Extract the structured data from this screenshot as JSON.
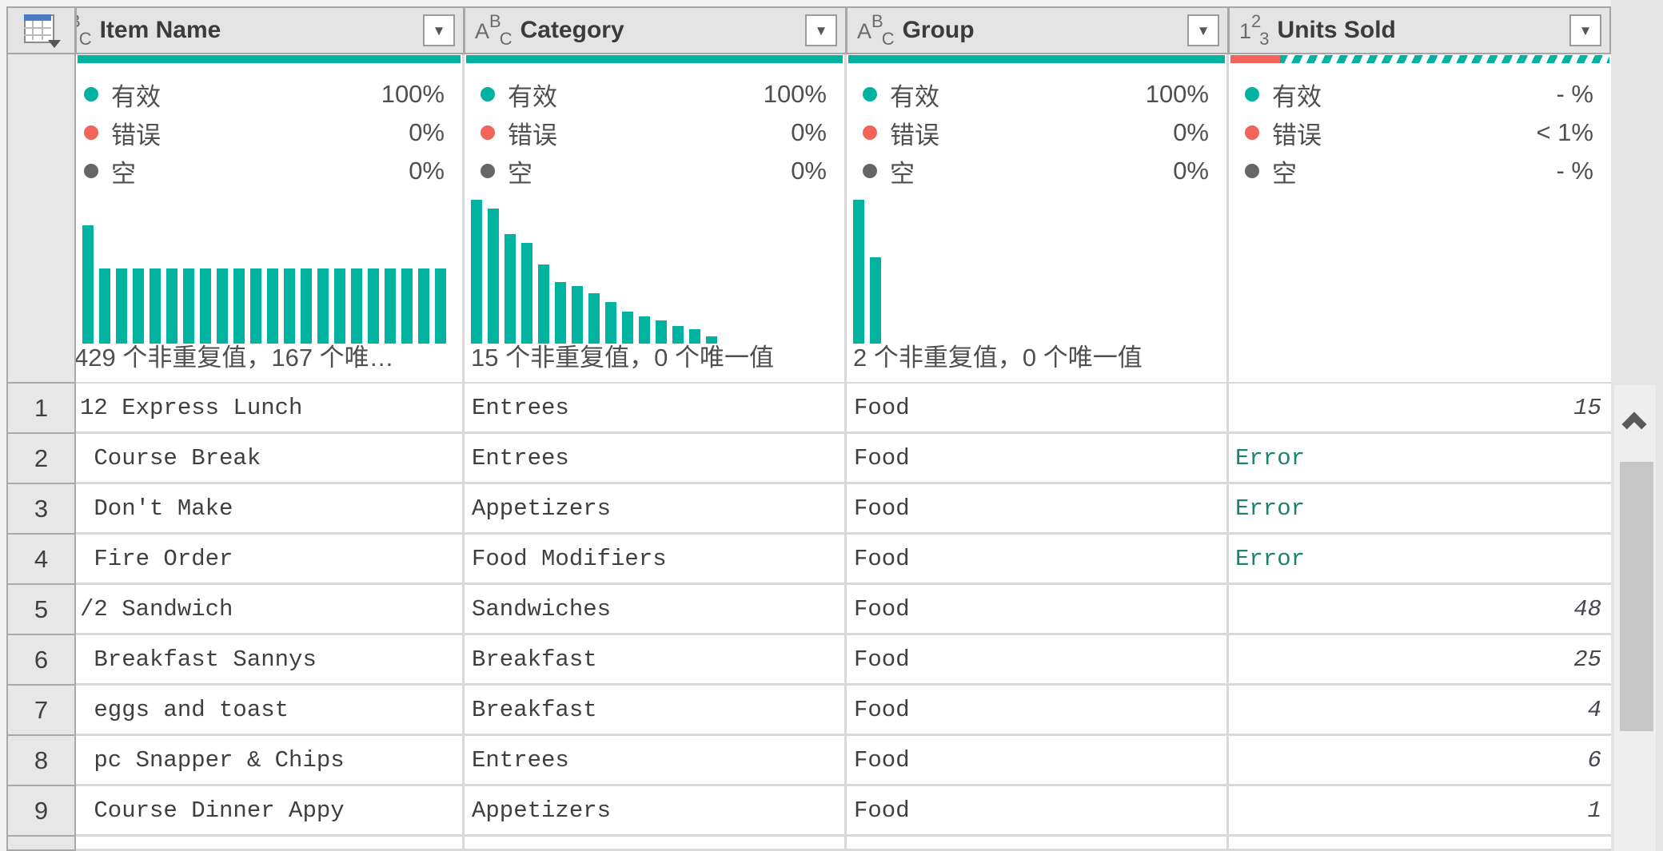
{
  "colors": {
    "teal": "#00B2A0",
    "red": "#F2645A",
    "bulletGray": "#666666",
    "errorText": "#1E8270",
    "numText": "#45484c"
  },
  "header": {
    "columns": [
      {
        "label": "Item Name",
        "icon": [
          "A",
          "B",
          "C"
        ],
        "filter_glyph": "▼"
      },
      {
        "label": "Category",
        "icon": [
          "A",
          "B",
          "C"
        ],
        "filter_glyph": "▼"
      },
      {
        "label": "Group",
        "icon": [
          "A",
          "B",
          "C"
        ],
        "filter_glyph": "▼"
      },
      {
        "label": "Units Sold",
        "icon": [
          "1",
          "2",
          "3"
        ],
        "filter_glyph": "▼"
      }
    ]
  },
  "profiles": {
    "valid_label": "有效",
    "error_label": "错误",
    "empty_label": "空",
    "columns": [
      {
        "valid": "100%",
        "error": "0%",
        "empty": "0%",
        "distinct_text": "429 个非重复值，167 个唯…",
        "bars": [
          0.82,
          0.52,
          0.52,
          0.52,
          0.52,
          0.52,
          0.52,
          0.52,
          0.52,
          0.52,
          0.52,
          0.52,
          0.52,
          0.52,
          0.52,
          0.52,
          0.52,
          0.52,
          0.52,
          0.52,
          0.52,
          0.52
        ]
      },
      {
        "valid": "100%",
        "error": "0%",
        "empty": "0%",
        "distinct_text": "15 个非重复值，0 个唯一值",
        "bars": [
          1.0,
          0.94,
          0.76,
          0.7,
          0.55,
          0.43,
          0.4,
          0.35,
          0.29,
          0.22,
          0.19,
          0.16,
          0.12,
          0.1,
          0.05
        ]
      },
      {
        "valid": "100%",
        "error": "0%",
        "empty": "0%",
        "distinct_text": "2 个非重复值，0 个唯一值",
        "bars": [
          1.0,
          0.6
        ]
      },
      {
        "valid": "- %",
        "error": "< 1%",
        "empty": "- %",
        "distinct_text": "",
        "bars": []
      }
    ]
  },
  "rows": [
    {
      "num": "1",
      "item": "12 Express Lunch",
      "category": "Entrees",
      "group": "Food",
      "units": "15",
      "units_kind": "number"
    },
    {
      "num": "2",
      "item": " Course Break",
      "category": "Entrees",
      "group": "Food",
      "units": "Error",
      "units_kind": "error"
    },
    {
      "num": "3",
      "item": " Don't Make",
      "category": "Appetizers",
      "group": "Food",
      "units": "Error",
      "units_kind": "error"
    },
    {
      "num": "4",
      "item": " Fire Order",
      "category": "Food Modifiers",
      "group": "Food",
      "units": "Error",
      "units_kind": "error"
    },
    {
      "num": "5",
      "item": "/2 Sandwich",
      "category": "Sandwiches",
      "group": "Food",
      "units": "48",
      "units_kind": "number"
    },
    {
      "num": "6",
      "item": " Breakfast Sannys",
      "category": "Breakfast",
      "group": "Food",
      "units": "25",
      "units_kind": "number"
    },
    {
      "num": "7",
      "item": " eggs and toast",
      "category": "Breakfast",
      "group": "Food",
      "units": "4",
      "units_kind": "number"
    },
    {
      "num": "8",
      "item": " pc Snapper & Chips",
      "category": "Entrees",
      "group": "Food",
      "units": "6",
      "units_kind": "number"
    },
    {
      "num": "9",
      "item": " Course Dinner Appy",
      "category": "Appetizers",
      "group": "Food",
      "units": "1",
      "units_kind": "number"
    }
  ]
}
